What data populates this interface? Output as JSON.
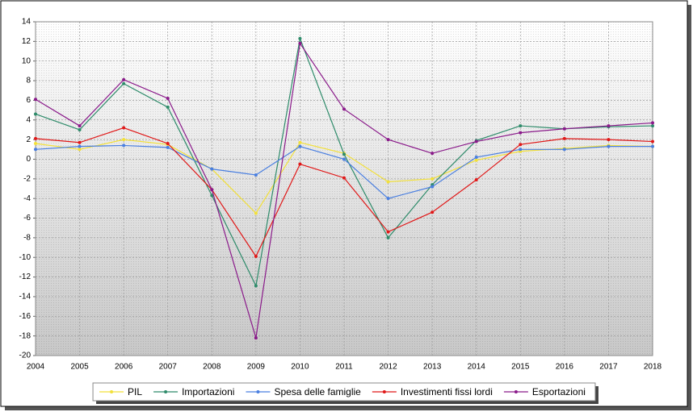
{
  "chart_data": {
    "type": "line",
    "x": [
      "2004",
      "2005",
      "2006",
      "2007",
      "2008",
      "2009",
      "2010",
      "2011",
      "2012",
      "2013",
      "2014",
      "2015",
      "2016",
      "2017",
      "2018"
    ],
    "ylim": [
      -20,
      14
    ],
    "yticks": [
      14,
      12,
      10,
      8,
      6,
      4,
      2,
      0,
      -2,
      -4,
      -6,
      -8,
      -10,
      -12,
      -14,
      -16,
      -18,
      -20
    ],
    "grid": true,
    "legend": "bottom",
    "series": [
      {
        "name": "PIL",
        "color": "#f2e03a",
        "values": [
          1.6,
          1.0,
          2.0,
          1.5,
          -1.0,
          -5.5,
          1.7,
          0.6,
          -2.3,
          -2.0,
          -0.1,
          0.8,
          1.1,
          1.4,
          1.3
        ]
      },
      {
        "name": "Importazioni",
        "color": "#2e8b6a",
        "values": [
          4.6,
          3.0,
          7.7,
          5.3,
          -3.7,
          -12.9,
          12.3,
          0.5,
          -8.0,
          -2.6,
          1.9,
          3.4,
          3.1,
          3.3,
          3.4
        ]
      },
      {
        "name": "Spesa delle famiglie",
        "color": "#4a7fe0",
        "values": [
          1.0,
          1.3,
          1.4,
          1.2,
          -1.0,
          -1.6,
          1.3,
          0.0,
          -4.0,
          -2.8,
          0.2,
          1.0,
          1.0,
          1.3,
          1.3
        ]
      },
      {
        "name": "Investimenti fissi lordi",
        "color": "#e01818",
        "values": [
          2.1,
          1.7,
          3.2,
          1.6,
          -3.1,
          -9.9,
          -0.5,
          -1.9,
          -7.4,
          -5.4,
          -2.1,
          1.5,
          2.1,
          2.0,
          1.8
        ]
      },
      {
        "name": "Esportazioni",
        "color": "#8a1a8a",
        "values": [
          6.1,
          3.4,
          8.1,
          6.2,
          -3.1,
          -18.2,
          11.8,
          5.1,
          2.0,
          0.6,
          1.8,
          2.7,
          3.1,
          3.4,
          3.7
        ]
      }
    ]
  }
}
